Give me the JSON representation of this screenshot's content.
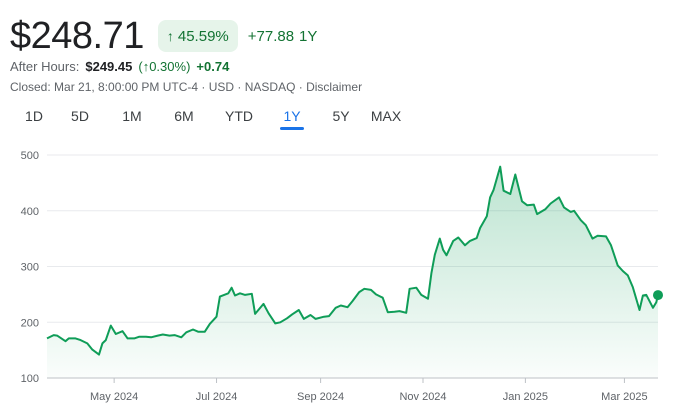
{
  "quote": {
    "price": "$248.71",
    "change_percent": "45.59%",
    "change_arrow": "↑",
    "change_abs": "+77.88",
    "period": "1Y"
  },
  "after_hours": {
    "label": "After Hours:",
    "price": "$249.45",
    "open_paren": "(",
    "arrow": "↑",
    "percent": "0.30%",
    "close_paren": ")",
    "change": "+0.74"
  },
  "closed_info": "Closed: Mar 21, 8:00:00 PM UTC-4 · USD · NASDAQ · Disclaimer",
  "tabs": [
    {
      "label": "1D",
      "active": false
    },
    {
      "label": "5D",
      "active": false
    },
    {
      "label": "1M",
      "active": false
    },
    {
      "label": "6M",
      "active": false
    },
    {
      "label": "YTD",
      "active": false
    },
    {
      "label": "1Y",
      "active": true
    },
    {
      "label": "5Y",
      "active": false
    },
    {
      "label": "MAX",
      "active": false
    }
  ],
  "colors": {
    "line": "#0f9d58",
    "positive_text": "#137333",
    "badge_bg": "#e6f4ea",
    "active_tab": "#1a73e8",
    "grid": "#e8eaed",
    "axis_text": "#5f6368"
  },
  "chart_data": {
    "type": "area",
    "ylim": [
      100,
      500
    ],
    "yticks": [
      100,
      200,
      300,
      400,
      500
    ],
    "xlim": [
      "2024-03-22",
      "2025-03-21"
    ],
    "xticks": [
      {
        "date": "2024-05-01",
        "label": "May 2024"
      },
      {
        "date": "2024-07-01",
        "label": "Jul 2024"
      },
      {
        "date": "2024-09-01",
        "label": "Sep 2024"
      },
      {
        "date": "2024-11-01",
        "label": "Nov 2024"
      },
      {
        "date": "2025-01-01",
        "label": "Jan 2025"
      },
      {
        "date": "2025-03-01",
        "label": "Mar 2025"
      }
    ],
    "grid": true,
    "series": [
      {
        "points": [
          [
            "2024-03-22",
            171
          ],
          [
            "2024-03-26",
            177
          ],
          [
            "2024-03-28",
            176
          ],
          [
            "2024-04-02",
            166
          ],
          [
            "2024-04-04",
            171
          ],
          [
            "2024-04-08",
            171
          ],
          [
            "2024-04-11",
            168
          ],
          [
            "2024-04-15",
            162
          ],
          [
            "2024-04-18",
            151
          ],
          [
            "2024-04-22",
            142
          ],
          [
            "2024-04-24",
            162
          ],
          [
            "2024-04-26",
            168
          ],
          [
            "2024-04-29",
            194
          ],
          [
            "2024-05-02",
            179
          ],
          [
            "2024-05-06",
            184
          ],
          [
            "2024-05-09",
            171
          ],
          [
            "2024-05-13",
            171
          ],
          [
            "2024-05-16",
            174
          ],
          [
            "2024-05-20",
            174
          ],
          [
            "2024-05-23",
            173
          ],
          [
            "2024-05-27",
            176
          ],
          [
            "2024-05-30",
            178
          ],
          [
            "2024-06-03",
            176
          ],
          [
            "2024-06-06",
            177
          ],
          [
            "2024-06-10",
            173
          ],
          [
            "2024-06-13",
            182
          ],
          [
            "2024-06-17",
            187
          ],
          [
            "2024-06-20",
            183
          ],
          [
            "2024-06-24",
            183
          ],
          [
            "2024-06-27",
            197
          ],
          [
            "2024-07-01",
            210
          ],
          [
            "2024-07-03",
            246
          ],
          [
            "2024-07-08",
            252
          ],
          [
            "2024-07-10",
            262
          ],
          [
            "2024-07-12",
            248
          ],
          [
            "2024-07-15",
            252
          ],
          [
            "2024-07-18",
            249
          ],
          [
            "2024-07-22",
            251
          ],
          [
            "2024-07-24",
            215
          ],
          [
            "2024-07-29",
            233
          ],
          [
            "2024-08-01",
            216
          ],
          [
            "2024-08-05",
            198
          ],
          [
            "2024-08-08",
            200
          ],
          [
            "2024-08-12",
            207
          ],
          [
            "2024-08-15",
            214
          ],
          [
            "2024-08-19",
            222
          ],
          [
            "2024-08-22",
            206
          ],
          [
            "2024-08-26",
            213
          ],
          [
            "2024-08-29",
            206
          ],
          [
            "2024-09-03",
            210
          ],
          [
            "2024-09-06",
            211
          ],
          [
            "2024-09-10",
            226
          ],
          [
            "2024-09-13",
            230
          ],
          [
            "2024-09-17",
            227
          ],
          [
            "2024-09-20",
            238
          ],
          [
            "2024-09-24",
            254
          ],
          [
            "2024-09-27",
            260
          ],
          [
            "2024-10-01",
            258
          ],
          [
            "2024-10-04",
            250
          ],
          [
            "2024-10-08",
            244
          ],
          [
            "2024-10-11",
            218
          ],
          [
            "2024-10-15",
            219
          ],
          [
            "2024-10-18",
            220
          ],
          [
            "2024-10-22",
            217
          ],
          [
            "2024-10-24",
            260
          ],
          [
            "2024-10-28",
            262
          ],
          [
            "2024-10-31",
            249
          ],
          [
            "2024-11-04",
            242
          ],
          [
            "2024-11-06",
            288
          ],
          [
            "2024-11-08",
            321
          ],
          [
            "2024-11-11",
            350
          ],
          [
            "2024-11-13",
            330
          ],
          [
            "2024-11-15",
            320
          ],
          [
            "2024-11-19",
            346
          ],
          [
            "2024-11-22",
            352
          ],
          [
            "2024-11-26",
            338
          ],
          [
            "2024-11-29",
            346
          ],
          [
            "2024-12-03",
            351
          ],
          [
            "2024-12-05",
            369
          ],
          [
            "2024-12-09",
            390
          ],
          [
            "2024-12-11",
            424
          ],
          [
            "2024-12-13",
            437
          ],
          [
            "2024-12-17",
            479
          ],
          [
            "2024-12-19",
            436
          ],
          [
            "2024-12-23",
            430
          ],
          [
            "2024-12-26",
            465
          ],
          [
            "2024-12-30",
            417
          ],
          [
            "2025-01-02",
            410
          ],
          [
            "2025-01-06",
            411
          ],
          [
            "2025-01-08",
            394
          ],
          [
            "2025-01-13",
            403
          ],
          [
            "2025-01-16",
            413
          ],
          [
            "2025-01-21",
            424
          ],
          [
            "2025-01-24",
            406
          ],
          [
            "2025-01-28",
            398
          ],
          [
            "2025-01-30",
            400
          ],
          [
            "2025-02-03",
            383
          ],
          [
            "2025-02-06",
            374
          ],
          [
            "2025-02-10",
            350
          ],
          [
            "2025-02-13",
            355
          ],
          [
            "2025-02-18",
            354
          ],
          [
            "2025-02-21",
            338
          ],
          [
            "2025-02-25",
            302
          ],
          [
            "2025-02-28",
            292
          ],
          [
            "2025-03-03",
            284
          ],
          [
            "2025-03-06",
            263
          ],
          [
            "2025-03-10",
            222
          ],
          [
            "2025-03-12",
            248
          ],
          [
            "2025-03-14",
            249
          ],
          [
            "2025-03-18",
            226
          ],
          [
            "2025-03-20",
            236
          ],
          [
            "2025-03-21",
            248.71
          ]
        ]
      }
    ]
  }
}
